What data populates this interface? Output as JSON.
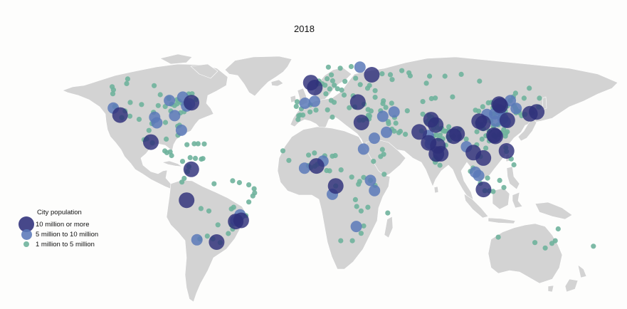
{
  "title": "2018",
  "legend": {
    "title": "City population",
    "items": [
      {
        "label": "10 million or more",
        "color": "#2e2f7a"
      },
      {
        "label": "5 million to 10 million",
        "color": "#5b79b8"
      },
      {
        "label": "1 million to 5 million",
        "color": "#6fb39c"
      }
    ]
  },
  "colors": {
    "land": "#d3d3d3",
    "background": "#fdfdfc"
  },
  "cities_large": [
    [
      -118.2,
      34.0
    ],
    [
      -99.1,
      19.4
    ],
    [
      -74.0,
      40.7
    ],
    [
      -77.0,
      -12.0
    ],
    [
      -46.6,
      -23.5
    ],
    [
      -43.2,
      -22.9
    ],
    [
      -58.4,
      -34.6
    ],
    [
      -74.1,
      4.7
    ],
    [
      2.35,
      48.85
    ],
    [
      -0.1,
      51.5
    ],
    [
      37.6,
      55.75
    ],
    [
      29.0,
      41.0
    ],
    [
      31.2,
      30.0
    ],
    [
      3.4,
      6.5
    ],
    [
      15.3,
      -4.3
    ],
    [
      67.0,
      24.9
    ],
    [
      74.3,
      31.5
    ],
    [
      77.2,
      28.6
    ],
    [
      72.8,
      19.0
    ],
    [
      88.4,
      22.6
    ],
    [
      90.4,
      23.8
    ],
    [
      77.6,
      12.97
    ],
    [
      80.3,
      13.1
    ],
    [
      78.5,
      17.4
    ],
    [
      100.5,
      13.75
    ],
    [
      106.7,
      10.8
    ],
    [
      121.0,
      14.6
    ],
    [
      106.8,
      -6.2
    ],
    [
      116.4,
      39.9
    ],
    [
      121.5,
      31.2
    ],
    [
      113.3,
      23.1
    ],
    [
      114.1,
      22.5
    ],
    [
      117.2,
      39.1
    ],
    [
      106.5,
      29.6
    ],
    [
      104.1,
      30.7
    ],
    [
      139.7,
      35.7
    ],
    [
      135.5,
      34.7
    ]
  ],
  "cities_medium": [
    [
      -122.4,
      37.8
    ],
    [
      -87.6,
      41.9
    ],
    [
      -79.4,
      43.7
    ],
    [
      -96.8,
      32.8
    ],
    [
      -95.4,
      29.8
    ],
    [
      -84.4,
      33.7
    ],
    [
      -80.2,
      25.8
    ],
    [
      -75.2,
      40.0
    ],
    [
      -77.0,
      38.9
    ],
    [
      -70.6,
      -33.4
    ],
    [
      -43.9,
      -19.9
    ],
    [
      -46.6,
      -23.0
    ],
    [
      -3.7,
      40.4
    ],
    [
      2.2,
      41.4
    ],
    [
      30.3,
      59.9
    ],
    [
      51.4,
      35.7
    ],
    [
      44.4,
      33.3
    ],
    [
      46.7,
      24.7
    ],
    [
      39.2,
      21.5
    ],
    [
      36.8,
      -1.3
    ],
    [
      39.3,
      -6.8
    ],
    [
      28.0,
      -26.2
    ],
    [
      32.5,
      15.6
    ],
    [
      13.2,
      -8.8
    ],
    [
      -4.0,
      5.3
    ],
    [
      7.4,
      9.1
    ],
    [
      73.8,
      18.5
    ],
    [
      72.6,
      23.0
    ],
    [
      96.2,
      16.9
    ],
    [
      101.7,
      3.1
    ],
    [
      103.8,
      1.3
    ],
    [
      126.98,
      37.57
    ],
    [
      114.3,
      30.6
    ],
    [
      118.8,
      32.1
    ],
    [
      120.2,
      30.3
    ],
    [
      123.4,
      41.8
    ],
    [
      108.9,
      34.3
    ],
    [
      113.6,
      34.7
    ],
    [
      117.0,
      36.7
    ]
  ],
  "cities_small": [
    [
      -123.1,
      49.3
    ],
    [
      -122.3,
      47.6
    ],
    [
      -122.7,
      45.5
    ],
    [
      -121.5,
      38.6
    ],
    [
      -117.2,
      32.7
    ],
    [
      -112.1,
      33.4
    ],
    [
      -115.1,
      36.2
    ],
    [
      -111.9,
      40.8
    ],
    [
      -104.9,
      39.7
    ],
    [
      -97.5,
      35.5
    ],
    [
      -94.6,
      39.1
    ],
    [
      -93.3,
      45.0
    ],
    [
      -90.2,
      38.6
    ],
    [
      -90.1,
      30.0
    ],
    [
      -86.8,
      36.2
    ],
    [
      -86.2,
      39.8
    ],
    [
      -83.0,
      40.0
    ],
    [
      -84.5,
      39.1
    ],
    [
      -81.7,
      41.5
    ],
    [
      -80.0,
      40.4
    ],
    [
      -83.0,
      42.3
    ],
    [
      -88.0,
      43.0
    ],
    [
      -80.8,
      35.2
    ],
    [
      -78.6,
      35.8
    ],
    [
      -76.6,
      39.3
    ],
    [
      -71.1,
      42.4
    ],
    [
      -73.6,
      45.5
    ],
    [
      -75.7,
      45.4
    ],
    [
      -98.5,
      29.4
    ],
    [
      -97.7,
      30.3
    ],
    [
      -81.4,
      28.5
    ],
    [
      -82.5,
      28.0
    ],
    [
      -114.1,
      51.0
    ],
    [
      -113.5,
      53.5
    ],
    [
      -97.1,
      49.9
    ],
    [
      -100.3,
      25.7
    ],
    [
      -103.3,
      20.7
    ],
    [
      -98.2,
      19.0
    ],
    [
      -106.4,
      31.7
    ],
    [
      -117.0,
      32.5
    ],
    [
      -101.7,
      21.1
    ],
    [
      -89.6,
      21.0
    ],
    [
      -90.5,
      14.6
    ],
    [
      -87.2,
      14.1
    ],
    [
      -89.2,
      13.7
    ],
    [
      -86.3,
      12.1
    ],
    [
      -79.5,
      9.0
    ],
    [
      -82.4,
      23.1
    ],
    [
      -69.9,
      18.5
    ],
    [
      -72.3,
      18.5
    ],
    [
      -66.1,
      18.4
    ],
    [
      -76.8,
      18.0
    ],
    [
      -66.9,
      10.5
    ],
    [
      -67.9,
      10.2
    ],
    [
      -71.6,
      10.6
    ],
    [
      -75.6,
      6.2
    ],
    [
      -76.5,
      3.4
    ],
    [
      -74.8,
      11.0
    ],
    [
      -79.9,
      -2.2
    ],
    [
      -78.5,
      -0.2
    ],
    [
      -68.1,
      -16.5
    ],
    [
      -63.2,
      -17.8
    ],
    [
      -57.6,
      -25.3
    ],
    [
      -56.2,
      -34.9
    ],
    [
      -64.2,
      -31.4
    ],
    [
      -60.7,
      -32.9
    ],
    [
      -68.8,
      -32.9
    ],
    [
      -48.5,
      -1.5
    ],
    [
      -60.0,
      -3.1
    ],
    [
      -38.5,
      -3.7
    ],
    [
      -34.9,
      -8.05
    ],
    [
      -38.5,
      -12.97
    ],
    [
      -49.3,
      -16.7
    ],
    [
      -47.9,
      -15.8
    ],
    [
      -51.2,
      -30.0
    ],
    [
      -49.3,
      -25.4
    ],
    [
      -48.5,
      -27.6
    ],
    [
      -47.1,
      -22.9
    ],
    [
      -44.3,
      -2.5
    ],
    [
      -35.2,
      -5.8
    ],
    [
      -40.3,
      -20.3
    ],
    [
      -36.0,
      -9.7
    ],
    [
      -9.1,
      38.7
    ],
    [
      -8.6,
      41.2
    ],
    [
      -6.0,
      37.4
    ],
    [
      -0.4,
      39.5
    ],
    [
      4.9,
      52.4
    ],
    [
      4.35,
      50.85
    ],
    [
      6.9,
      50.9
    ],
    [
      8.7,
      50.1
    ],
    [
      13.4,
      52.5
    ],
    [
      10.0,
      53.6
    ],
    [
      11.6,
      48.1
    ],
    [
      9.2,
      45.5
    ],
    [
      12.5,
      41.9
    ],
    [
      14.3,
      40.9
    ],
    [
      16.4,
      48.2
    ],
    [
      19.0,
      47.5
    ],
    [
      21.0,
      52.2
    ],
    [
      14.4,
      50.1
    ],
    [
      18.1,
      59.3
    ],
    [
      10.75,
      59.9
    ],
    [
      12.6,
      55.7
    ],
    [
      24.9,
      60.2
    ],
    [
      23.7,
      37.98
    ],
    [
      26.1,
      44.4
    ],
    [
      20.5,
      44.8
    ],
    [
      30.5,
      50.45
    ],
    [
      27.6,
      53.9
    ],
    [
      36.2,
      49.99
    ],
    [
      35.0,
      48.5
    ],
    [
      39.7,
      47.2
    ],
    [
      44.0,
      56.3
    ],
    [
      49.1,
      55.8
    ],
    [
      50.2,
      53.2
    ],
    [
      60.6,
      56.8
    ],
    [
      61.4,
      55.2
    ],
    [
      73.4,
      55.0
    ],
    [
      82.9,
      55.0
    ],
    [
      93.0,
      56.0
    ],
    [
      104.3,
      52.3
    ],
    [
      56.2,
      58.0
    ],
    [
      39.7,
      43.6
    ],
    [
      44.8,
      41.7
    ],
    [
      44.5,
      40.2
    ],
    [
      49.9,
      40.4
    ],
    [
      32.85,
      39.9
    ],
    [
      27.1,
      38.4
    ],
    [
      35.3,
      37.0
    ],
    [
      35.5,
      33.9
    ],
    [
      36.3,
      33.5
    ],
    [
      37.2,
      36.2
    ],
    [
      35.9,
      31.9
    ],
    [
      34.8,
      32.1
    ],
    [
      29.9,
      31.2
    ],
    [
      32.3,
      31.3
    ],
    [
      43.1,
      36.3
    ],
    [
      47.8,
      30.5
    ],
    [
      48.0,
      29.4
    ],
    [
      51.5,
      25.3
    ],
    [
      55.3,
      25.2
    ],
    [
      54.4,
      24.5
    ],
    [
      58.4,
      23.6
    ],
    [
      50.1,
      26.4
    ],
    [
      44.2,
      15.4
    ],
    [
      45.0,
      12.8
    ],
    [
      59.6,
      36.3
    ],
    [
      51.7,
      32.7
    ],
    [
      52.5,
      29.6
    ],
    [
      46.3,
      38.1
    ],
    [
      69.2,
      41.3
    ],
    [
      71.4,
      51.2
    ],
    [
      76.9,
      43.2
    ],
    [
      74.6,
      42.9
    ],
    [
      69.2,
      34.5
    ],
    [
      73.1,
      33.7
    ],
    [
      71.5,
      30.2
    ],
    [
      73.1,
      31.4
    ],
    [
      68.4,
      25.4
    ],
    [
      -17.4,
      14.7
    ],
    [
      -13.7,
      9.5
    ],
    [
      -1.5,
      12.4
    ],
    [
      -0.2,
      5.6
    ],
    [
      -1.6,
      6.7
    ],
    [
      2.1,
      13.5
    ],
    [
      2.4,
      6.4
    ],
    [
      3.9,
      7.4
    ],
    [
      8.5,
      12.0
    ],
    [
      13.2,
      11.8
    ],
    [
      15.0,
      12.1
    ],
    [
      11.5,
      3.9
    ],
    [
      9.7,
      4.05
    ],
    [
      18.6,
      4.4
    ],
    [
      25.2,
      0.5
    ],
    [
      27.5,
      -11.7
    ],
    [
      28.3,
      -15.4
    ],
    [
      31.0,
      -17.8
    ],
    [
      32.6,
      -25.9
    ],
    [
      35.2,
      -15.8
    ],
    [
      32.6,
      0.3
    ],
    [
      30.1,
      -1.9
    ],
    [
      29.4,
      -3.4
    ],
    [
      38.7,
      9.0
    ],
    [
      45.3,
      2.0
    ],
    [
      43.1,
      11.6
    ],
    [
      47.5,
      -18.9
    ],
    [
      31.0,
      -29.9
    ],
    [
      18.4,
      -33.9
    ],
    [
      25.6,
      -33.9
    ],
    [
      36.8,
      -1.3
    ],
    [
      39.7,
      -4.0
    ],
    [
      3.1,
      36.7
    ],
    [
      -7.6,
      33.6
    ],
    [
      -6.8,
      34.0
    ],
    [
      10.2,
      36.8
    ],
    [
      13.2,
      32.9
    ],
    [
      -5.0,
      34.0
    ],
    [
      -8.0,
      31.6
    ],
    [
      -0.6,
      35.7
    ],
    [
      15.3,
      -4.3
    ],
    [
      75.8,
      26.9
    ],
    [
      80.9,
      26.8
    ],
    [
      80.3,
      26.4
    ],
    [
      85.1,
      25.6
    ],
    [
      81.8,
      25.4
    ],
    [
      83.0,
      25.3
    ],
    [
      79.9,
      23.2
    ],
    [
      77.4,
      23.3
    ],
    [
      75.9,
      22.7
    ],
    [
      81.6,
      21.2
    ],
    [
      79.1,
      21.1
    ],
    [
      85.8,
      20.3
    ],
    [
      73.0,
      21.2
    ],
    [
      72.9,
      19.2
    ],
    [
      73.8,
      20.0
    ],
    [
      75.3,
      19.9
    ],
    [
      76.3,
      10.0
    ],
    [
      76.95,
      11.0
    ],
    [
      78.1,
      9.9
    ],
    [
      76.9,
      8.5
    ],
    [
      79.8,
      6.9
    ],
    [
      85.3,
      27.7
    ],
    [
      91.7,
      26.1
    ],
    [
      92.0,
      22.3
    ],
    [
      88.3,
      22.6
    ],
    [
      75.9,
      30.9
    ],
    [
      74.9,
      32.7
    ],
    [
      76.8,
      30.7
    ],
    [
      78.0,
      30.3
    ],
    [
      78.0,
      27.2
    ],
    [
      77.7,
      28.98
    ],
    [
      80.9,
      26.8
    ],
    [
      82.9,
      25.3
    ],
    [
      83.4,
      17.7
    ],
    [
      84.9,
      22.2
    ],
    [
      96.1,
      21.0
    ],
    [
      102.6,
      17.97
    ],
    [
      104.9,
      11.6
    ],
    [
      105.85,
      21.0
    ],
    [
      108.2,
      16.1
    ],
    [
      100.3,
      5.4
    ],
    [
      98.7,
      3.6
    ],
    [
      110.4,
      -7.0
    ],
    [
      112.75,
      -7.25
    ],
    [
      107.6,
      -6.9
    ],
    [
      104.8,
      -2.9
    ],
    [
      119.4,
      -5.1
    ],
    [
      116.8,
      -1.3
    ],
    [
      109.3,
      -0.02
    ],
    [
      123.9,
      10.3
    ],
    [
      125.6,
      7.1
    ],
    [
      120.6,
      16.4
    ],
    [
      121.0,
      14.3
    ],
    [
      126.6,
      45.8
    ],
    [
      125.3,
      43.9
    ],
    [
      123.4,
      41.8
    ],
    [
      121.6,
      38.9
    ],
    [
      114.5,
      38.0
    ],
    [
      112.6,
      37.9
    ],
    [
      111.7,
      40.8
    ],
    [
      109.8,
      40.6
    ],
    [
      103.8,
      36.1
    ],
    [
      101.8,
      36.6
    ],
    [
      106.3,
      38.5
    ],
    [
      87.6,
      43.8
    ],
    [
      102.7,
      25.0
    ],
    [
      106.6,
      26.6
    ],
    [
      108.3,
      22.8
    ],
    [
      110.3,
      20.0
    ],
    [
      110.3,
      25.3
    ],
    [
      113.0,
      28.2
    ],
    [
      115.9,
      28.7
    ],
    [
      117.3,
      31.9
    ],
    [
      119.3,
      26.1
    ],
    [
      118.1,
      24.5
    ],
    [
      116.7,
      23.4
    ],
    [
      113.1,
      23.0
    ],
    [
      113.8,
      22.7
    ],
    [
      112.9,
      27.8
    ],
    [
      114.3,
      22.3
    ],
    [
      120.3,
      36.1
    ],
    [
      120.4,
      31.5
    ],
    [
      119.0,
      34.6
    ],
    [
      117.2,
      34.3
    ],
    [
      115.5,
      38.9
    ],
    [
      116.0,
      36.5
    ],
    [
      118.3,
      35.1
    ],
    [
      121.5,
      25.0
    ],
    [
      120.7,
      24.2
    ],
    [
      120.3,
      22.6
    ],
    [
      129.1,
      35.2
    ],
    [
      128.6,
      35.9
    ],
    [
      126.9,
      35.2
    ],
    [
      127.4,
      36.35
    ],
    [
      126.7,
      37.45
    ],
    [
      125.8,
      39.0
    ],
    [
      130.4,
      33.6
    ],
    [
      136.9,
      35.2
    ],
    [
      141.4,
      43.1
    ],
    [
      140.9,
      38.3
    ],
    [
      132.5,
      34.4
    ],
    [
      131.9,
      43.1
    ],
    [
      135.1,
      48.5
    ],
    [
      113.7,
      34.8
    ],
    [
      112.4,
      34.6
    ],
    [
      111.3,
      30.7
    ],
    [
      106.7,
      26.6
    ],
    [
      104.6,
      28.8
    ],
    [
      105.4,
      28.9
    ],
    [
      103.0,
      29.9
    ],
    [
      108.0,
      30.8
    ],
    [
      115.9,
      -31.95
    ],
    [
      138.6,
      -34.9
    ],
    [
      144.96,
      -37.8
    ],
    [
      151.2,
      -33.9
    ],
    [
      153.0,
      -27.5
    ],
    [
      174.8,
      -36.85
    ],
    [
      149.1,
      -35.3
    ]
  ]
}
